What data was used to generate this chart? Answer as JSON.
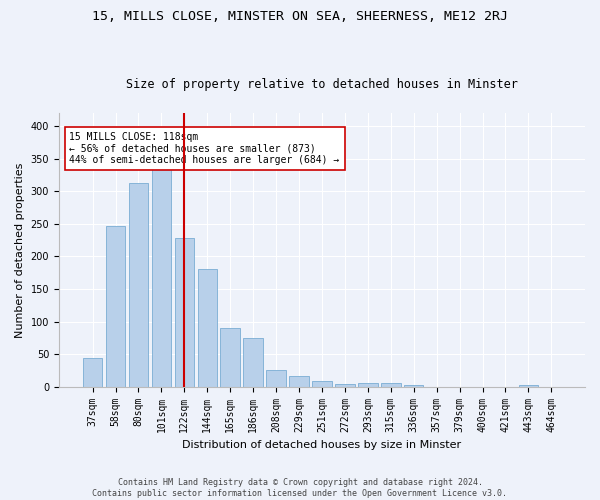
{
  "title1": "15, MILLS CLOSE, MINSTER ON SEA, SHEERNESS, ME12 2RJ",
  "title2": "Size of property relative to detached houses in Minster",
  "xlabel": "Distribution of detached houses by size in Minster",
  "ylabel": "Number of detached properties",
  "footnote": "Contains HM Land Registry data © Crown copyright and database right 2024.\nContains public sector information licensed under the Open Government Licence v3.0.",
  "bar_labels": [
    "37sqm",
    "58sqm",
    "80sqm",
    "101sqm",
    "122sqm",
    "144sqm",
    "165sqm",
    "186sqm",
    "208sqm",
    "229sqm",
    "251sqm",
    "272sqm",
    "293sqm",
    "315sqm",
    "336sqm",
    "357sqm",
    "379sqm",
    "400sqm",
    "421sqm",
    "443sqm",
    "464sqm"
  ],
  "bar_values": [
    44,
    246,
    313,
    335,
    228,
    180,
    90,
    75,
    26,
    16,
    9,
    4,
    5,
    5,
    3,
    0,
    0,
    0,
    0,
    3,
    0
  ],
  "bar_color": "#b8d0ea",
  "bar_edge_color": "#7aadd4",
  "vline_x_idx": 4,
  "vline_color": "#cc0000",
  "annotation_text": "15 MILLS CLOSE: 118sqm\n← 56% of detached houses are smaller (873)\n44% of semi-detached houses are larger (684) →",
  "annotation_box_color": "#ffffff",
  "annotation_box_edge": "#cc0000",
  "ylim": [
    0,
    420
  ],
  "yticks": [
    0,
    50,
    100,
    150,
    200,
    250,
    300,
    350,
    400
  ],
  "background_color": "#eef2fa",
  "grid_color": "#ffffff",
  "title1_fontsize": 9.5,
  "title2_fontsize": 8.5,
  "xlabel_fontsize": 8,
  "ylabel_fontsize": 8,
  "tick_fontsize": 7,
  "annot_fontsize": 7
}
